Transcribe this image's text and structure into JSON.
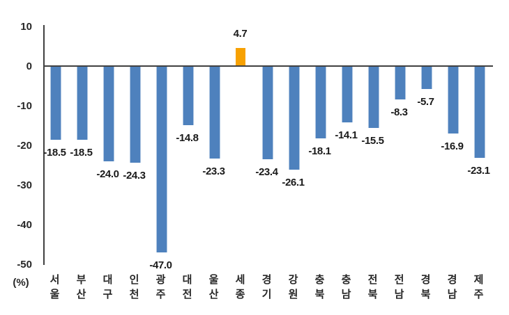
{
  "chart_data": {
    "type": "bar",
    "title": "",
    "unit_label": "(%)",
    "categories": [
      "서울",
      "부산",
      "대구",
      "인천",
      "광주",
      "대전",
      "울산",
      "세종",
      "경기",
      "강원",
      "충북",
      "충남",
      "전북",
      "전남",
      "경북",
      "경남",
      "제주"
    ],
    "values": [
      -18.5,
      -18.5,
      -24.0,
      -24.3,
      -47.0,
      -14.8,
      -23.3,
      4.7,
      -23.4,
      -26.1,
      -18.1,
      -14.1,
      -15.5,
      -8.3,
      -5.7,
      -16.9,
      -23.1
    ],
    "value_labels": [
      "-18.5",
      "-18.5",
      "-24.0",
      "-24.3",
      "-47.0",
      "-14.8",
      "-23.3",
      "4.7",
      "-23.4",
      "-26.1",
      "-18.1",
      "-14.1",
      "-15.5",
      "-8.3",
      "-5.7",
      "-16.9",
      "-23.1"
    ],
    "y_ticks": [
      10,
      0,
      -10,
      -20,
      -30,
      -40,
      -50
    ],
    "ylim": [
      -50,
      10
    ],
    "grid": "off",
    "legend_position": "none",
    "colors": {
      "bar_negative": "#4E81BD",
      "bar_positive": "#F7A102",
      "axis": "#404040",
      "label_text": "#1A1A1A",
      "tick_text": "#262626"
    }
  }
}
